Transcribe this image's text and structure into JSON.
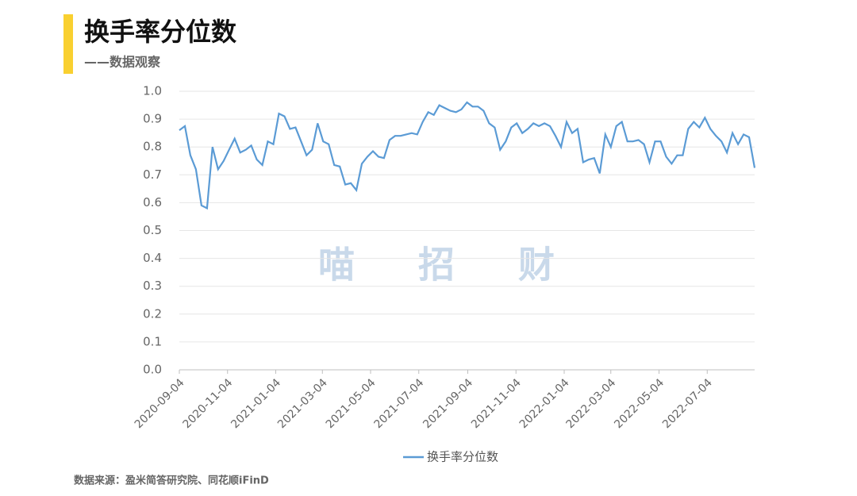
{
  "title": "换手率分位数",
  "subtitle": "——数据观察",
  "source": "数据来源：盈米简答研究院、同花顺iFinD",
  "watermark": "喵招财",
  "chart_data": {
    "type": "line",
    "x": [
      "2020-09-04",
      "2020-09-11",
      "2020-09-18",
      "2020-09-25",
      "2020-10-02",
      "2020-10-09",
      "2020-10-16",
      "2020-10-23",
      "2020-10-30",
      "2020-11-06",
      "2020-11-13",
      "2020-11-20",
      "2020-11-27",
      "2020-12-04",
      "2020-12-11",
      "2020-12-18",
      "2020-12-25",
      "2021-01-01",
      "2021-01-08",
      "2021-01-15",
      "2021-01-22",
      "2021-01-29",
      "2021-02-05",
      "2021-02-12",
      "2021-02-19",
      "2021-02-26",
      "2021-03-05",
      "2021-03-12",
      "2021-03-19",
      "2021-03-26",
      "2021-04-02",
      "2021-04-09",
      "2021-04-16",
      "2021-04-23",
      "2021-04-30",
      "2021-05-07",
      "2021-05-14",
      "2021-05-21",
      "2021-05-28",
      "2021-06-04",
      "2021-06-11",
      "2021-06-18",
      "2021-06-25",
      "2021-07-02",
      "2021-07-09",
      "2021-07-16",
      "2021-07-23",
      "2021-07-30",
      "2021-08-06",
      "2021-08-13",
      "2021-08-20",
      "2021-08-27",
      "2021-09-03",
      "2021-09-10",
      "2021-09-17",
      "2021-09-24",
      "2021-10-01",
      "2021-10-08",
      "2021-10-15",
      "2021-10-22",
      "2021-10-29",
      "2021-11-05",
      "2021-11-12",
      "2021-11-19",
      "2021-11-26",
      "2021-12-03",
      "2021-12-10",
      "2021-12-17",
      "2021-12-24",
      "2021-12-31",
      "2022-01-07",
      "2022-01-14",
      "2022-01-21",
      "2022-01-28",
      "2022-02-04",
      "2022-02-11",
      "2022-02-18",
      "2022-02-25",
      "2022-03-04",
      "2022-03-11",
      "2022-03-18",
      "2022-03-25",
      "2022-04-01",
      "2022-04-08",
      "2022-04-15",
      "2022-04-22",
      "2022-04-29",
      "2022-05-06",
      "2022-05-13",
      "2022-05-20",
      "2022-05-27",
      "2022-06-03",
      "2022-06-10",
      "2022-06-17",
      "2022-06-24",
      "2022-07-01",
      "2022-07-08",
      "2022-07-15",
      "2022-07-22",
      "2022-07-29",
      "2022-08-05",
      "2022-08-12",
      "2022-08-19",
      "2022-08-26",
      "2022-09-02"
    ],
    "series": [
      {
        "name": "换手率分位数",
        "color": "#5b9bd5",
        "values": [
          0.86,
          0.875,
          0.77,
          0.72,
          0.59,
          0.58,
          0.8,
          0.72,
          0.75,
          0.79,
          0.83,
          0.78,
          0.79,
          0.805,
          0.755,
          0.735,
          0.82,
          0.81,
          0.92,
          0.91,
          0.865,
          0.87,
          0.82,
          0.77,
          0.79,
          0.885,
          0.82,
          0.81,
          0.735,
          0.73,
          0.665,
          0.67,
          0.645,
          0.74,
          0.765,
          0.785,
          0.765,
          0.76,
          0.825,
          0.84,
          0.84,
          0.845,
          0.85,
          0.845,
          0.89,
          0.925,
          0.915,
          0.95,
          0.94,
          0.93,
          0.925,
          0.935,
          0.96,
          0.945,
          0.945,
          0.93,
          0.885,
          0.87,
          0.79,
          0.82,
          0.87,
          0.885,
          0.85,
          0.865,
          0.885,
          0.875,
          0.885,
          0.875,
          0.84,
          0.8,
          0.89,
          0.85,
          0.865,
          0.745,
          0.755,
          0.76,
          0.705,
          0.845,
          0.8,
          0.875,
          0.89,
          0.82,
          0.82,
          0.825,
          0.81,
          0.745,
          0.82,
          0.82,
          0.765,
          0.74,
          0.77,
          0.77,
          0.865,
          0.89,
          0.87,
          0.905,
          0.865,
          0.84,
          0.82,
          0.78,
          0.85,
          0.81,
          0.845,
          0.835,
          0.725
        ]
      }
    ],
    "xlim": [
      "2020-09-04",
      "2022-09-02"
    ],
    "xticks": [
      "2020-09-04",
      "2020-11-04",
      "2021-01-04",
      "2021-03-04",
      "2021-05-04",
      "2021-07-04",
      "2021-09-04",
      "2021-11-04",
      "2022-01-04",
      "2022-03-04",
      "2022-05-04",
      "2022-07-04"
    ],
    "ylim": [
      0,
      1
    ],
    "yticks": [
      {
        "value": 0,
        "label": "0.0"
      },
      {
        "value": 0.1,
        "label": "0.1"
      },
      {
        "value": 0.2,
        "label": "0.2"
      },
      {
        "value": 0.3,
        "label": "0.3"
      },
      {
        "value": 0.4,
        "label": "0.4"
      },
      {
        "value": 0.5,
        "label": "0.5"
      },
      {
        "value": 0.6,
        "label": "0.6"
      },
      {
        "value": 0.7,
        "label": "0.7"
      },
      {
        "value": 0.8,
        "label": "0.8"
      },
      {
        "value": 0.9,
        "label": "0.9"
      },
      {
        "value": 1,
        "label": "1.0"
      }
    ],
    "grid": true
  }
}
